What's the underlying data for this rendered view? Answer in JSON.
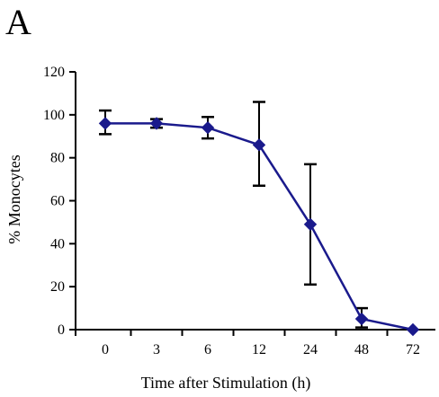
{
  "panel_label": "A",
  "chart_data": {
    "type": "line",
    "title": "",
    "xlabel": "Time after Stimulation (h)",
    "ylabel": "% Monocytes",
    "categories": [
      "0",
      "3",
      "6",
      "12",
      "24",
      "48",
      "72"
    ],
    "ylim": [
      0,
      120
    ],
    "yticks": [
      0,
      20,
      40,
      60,
      80,
      100,
      120
    ],
    "grid": false,
    "legend": "none",
    "series": [
      {
        "values": [
          96,
          96,
          94,
          86,
          49,
          5,
          0
        ],
        "error_low": [
          91,
          94,
          89,
          67,
          21,
          1,
          0
        ],
        "error_high": [
          102,
          98,
          99,
          106,
          77,
          10,
          0
        ],
        "color": "#1a1a8c",
        "marker": "diamond"
      }
    ],
    "error_bar_color": "#000000"
  }
}
